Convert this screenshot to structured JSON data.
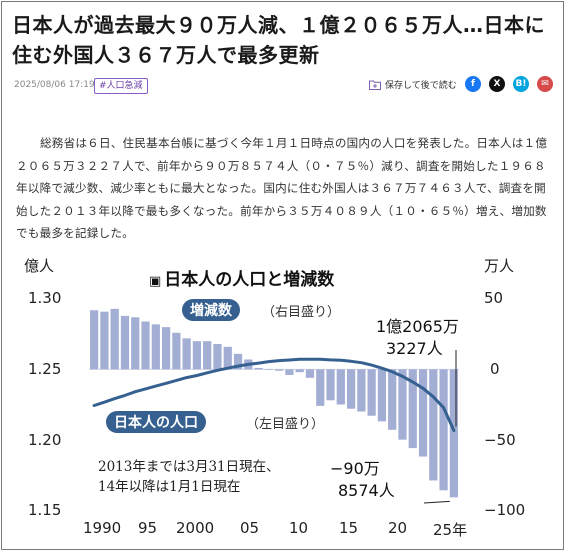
{
  "article": {
    "headline": "日本人が過去最大９０万人減、１億２０６５万人…日本に住む外国人３６７万人で最多更新",
    "date": "2025/08/06 17:19",
    "tag": "#人口急減",
    "save_label": "保存して後で読む",
    "share_icons": {
      "facebook": "f",
      "x": "X",
      "hatena": "B!",
      "mail": "✉"
    },
    "body": "総務省は６日、住民基本台帳に基づく今年１月１日時点の国内の人口を発表した。日本人は１億２０６５万３２２７人で、前年から９０万８５７４人（０・７５％）減り、調査を開始した１９６８年以降で減少数、減少率ともに最大となった。国内に住む外国人は３６７万７４６３人で、調査を開始した２０１３年以降で最も多くなった。前年から３５万４０８９人（１０・６５％）増え、増加数でも最多を記録した。"
  },
  "chart_data": {
    "type": "bar+line",
    "title": "日本人の人口と増減数",
    "left_axis": {
      "unit": "億人",
      "ticks": [
        "1.30",
        "1.25",
        "1.20",
        "1.15"
      ],
      "range": [
        1.15,
        1.3
      ]
    },
    "right_axis": {
      "unit": "万人",
      "ticks": [
        "50",
        "0",
        "−50",
        "−100"
      ],
      "range": [
        -100,
        50
      ]
    },
    "x_ticks": [
      "1990",
      "95",
      "2000",
      "05",
      "10",
      "15",
      "20",
      "25年"
    ],
    "years": [
      1990,
      1991,
      1992,
      1993,
      1994,
      1995,
      1996,
      1997,
      1998,
      1999,
      2000,
      2001,
      2002,
      2003,
      2004,
      2005,
      2006,
      2007,
      2008,
      2009,
      2010,
      2011,
      2012,
      2013,
      2014,
      2015,
      2016,
      2017,
      2018,
      2019,
      2020,
      2021,
      2022,
      2023,
      2024,
      2025
    ],
    "series": [
      {
        "name": "増減数",
        "axis": "right",
        "unit": "万人",
        "type": "bar",
        "values": [
          42,
          41,
          43,
          38,
          37,
          34,
          32,
          30,
          26,
          22,
          20,
          20,
          18,
          16,
          11,
          7,
          1,
          0,
          -1,
          -4,
          -2,
          -6,
          -26,
          -22,
          -25,
          -28,
          -30,
          -33,
          -37,
          -43,
          -50,
          -56,
          -62,
          -79,
          -86,
          -91
        ]
      },
      {
        "name": "日本人の人口",
        "axis": "left",
        "unit": "億人",
        "type": "line",
        "values": [
          1.2243,
          1.2266,
          1.2292,
          1.2315,
          1.2341,
          1.2361,
          1.2381,
          1.2401,
          1.2421,
          1.2441,
          1.2456,
          1.2475,
          1.2493,
          1.2508,
          1.2523,
          1.2535,
          1.2544,
          1.2555,
          1.2562,
          1.2566,
          1.2571,
          1.2572,
          1.2572,
          1.2567,
          1.2564,
          1.2557,
          1.2547,
          1.253,
          1.2508,
          1.2483,
          1.245,
          1.241,
          1.2365,
          1.2305,
          1.2227,
          1.2065
        ]
      }
    ],
    "labels": {
      "bar_series": "増減数",
      "bar_axis_note": "（右目盛り）",
      "line_series": "日本人の人口",
      "line_axis_note": "（左目盛り）",
      "population_value_1": "1億2065万",
      "population_value_2": "3227人",
      "change_value_1": "−90万",
      "change_value_2": "8574人",
      "note_1": "2013年までは3月31日現在、",
      "note_2": "14年以降は1月1日現在"
    },
    "colors": {
      "bar": "#a3aed4",
      "line": "#35608f",
      "pill": "#35608f"
    }
  }
}
